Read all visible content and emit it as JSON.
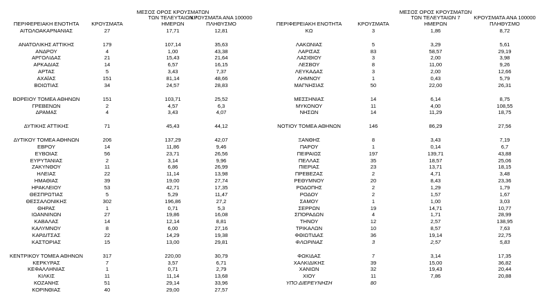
{
  "tables": [
    {
      "header": [
        "ΠΕΡΙΦΕΡΕΙΑΚΗ ΕΝΟΤΗΤΑ",
        "ΚΡΟΥΣΜΑΤΑ",
        [
          "ΜΕΣΟΣ ΟΡΟΣ ΚΡΟΥΣΜΑΤΩΝ",
          "ΤΩΝ ΤΕΛΕΥΤΑΙΩΝ 7",
          "ΗΜΕΡΩΝ"
        ],
        [
          "ΚΡΟΥΣΜΑΤΑ ΑΝΑ 100000",
          "ΠΛΗΘΥΣΜΟ"
        ]
      ],
      "groups": [
        [
          [
            "ΑΙΤΩΛΟΑΚΑΡΝΑΝΙΑΣ",
            "27",
            "17,71",
            "12,81"
          ]
        ],
        [
          [
            "ΑΝΑΤΟΛΙΚΗΣ ΑΤΤΙΚΗΣ",
            "179",
            "107,14",
            "35,63"
          ],
          [
            "ΑΝΔΡΟΥ",
            "4",
            "1,00",
            "43,38"
          ],
          [
            "ΑΡΓΟΛΙΔΑΣ",
            "21",
            "15,43",
            "21,64"
          ],
          [
            "ΑΡΚΑΔΙΑΣ",
            "14",
            "6,57",
            "16,15"
          ],
          [
            "ΑΡΤΑΣ",
            "5",
            "3,43",
            "7,37"
          ],
          [
            "ΑΧΑΪΑΣ",
            "151",
            "81,14",
            "48,66"
          ],
          [
            "ΒΟΙΩΤΙΑΣ",
            "34",
            "24,57",
            "28,83"
          ]
        ],
        [
          [
            "ΒΟΡΕΙΟΥ ΤΟΜΕΑ ΑΘΗΝΩΝ",
            "151",
            "103,71",
            "25,52"
          ],
          [
            "ΓΡΕΒΕΝΩΝ",
            "2",
            "4,57",
            "6,3"
          ],
          [
            "ΔΡΑΜΑΣ",
            "4",
            "3,43",
            "4,07"
          ]
        ],
        [
          [
            "ΔΥΤΙΚΗΣ ΑΤΤΙΚΗΣ",
            "71",
            "45,43",
            "44,12"
          ]
        ],
        [
          [
            "ΔΥΤΙΚΟΥ ΤΟΜΕΑ ΑΘΗΝΩΝ",
            "206",
            "137,29",
            "42,07"
          ],
          [
            "ΕΒΡΟΥ",
            "14",
            "11,86",
            "9,46"
          ],
          [
            "ΕΥΒΟΙΑΣ",
            "56",
            "23,71",
            "26,56"
          ],
          [
            "ΕΥΡΥΤΑΝΙΑΣ",
            "2",
            "3,14",
            "9,96"
          ],
          [
            "ΖΑΚΥΝΘΟΥ",
            "11",
            "6,86",
            "26,99"
          ],
          [
            "ΗΛΕΙΑΣ",
            "22",
            "11,14",
            "13,98"
          ],
          [
            "ΗΜΑΘΙΑΣ",
            "39",
            "19,00",
            "27,74"
          ],
          [
            "ΗΡΑΚΛΕΙΟΥ",
            "53",
            "42,71",
            "17,35"
          ],
          [
            "ΘΕΣΠΡΩΤΙΑΣ",
            "5",
            "5,29",
            "11,47"
          ],
          [
            "ΘΕΣΣΑΛΟΝΙΚΗΣ",
            "302",
            "196,86",
            "27,2"
          ],
          [
            "ΘΗΡΑΣ",
            "1",
            "0,71",
            "5,3"
          ],
          [
            "ΙΩΑΝΝΙΝΩΝ",
            "27",
            "19,86",
            "16,08"
          ],
          [
            "ΚΑΒΑΛΑΣ",
            "14",
            "12,14",
            "8,81"
          ],
          [
            "ΚΑΛΥΜΝΟΥ",
            "8",
            "6,00",
            "27,16"
          ],
          [
            "ΚΑΡΔΙΤΣΑΣ",
            "22",
            "14,29",
            "19,38"
          ],
          [
            "ΚΑΣΤΟΡΙΑΣ",
            "15",
            "13,00",
            "29,81"
          ]
        ],
        [
          [
            "ΚΕΝΤΡΙΚΟΥ ΤΟΜΕΑ ΑΘΗΝΩΝ",
            "317",
            "220,00",
            "30,79"
          ],
          [
            "ΚΕΡΚΥΡΑΣ",
            "7",
            "3,57",
            "6,71"
          ],
          [
            "ΚΕΦΑΛΛΗΝΙΑΣ",
            "1",
            "0,71",
            "2,79"
          ],
          [
            "ΚΙΛΚΙΣ",
            "11",
            "11,14",
            "13,68"
          ],
          [
            "ΚΟΖΑΝΗΣ",
            "51",
            "29,14",
            "33,96"
          ],
          [
            "ΚΟΡΙΝΘΙΑΣ",
            "40",
            "29,00",
            "27,57"
          ]
        ]
      ]
    },
    {
      "header": [
        "ΠΕΡΙΦΕΡΕΙΑΚΗ ΕΝΟΤΗΤΑ",
        "ΚΡΟΥΣΜΑΤΑ",
        [
          "ΜΕΣΟΣ ΟΡΟΣ ΚΡΟΥΣΜΑΤΩΝ",
          "ΤΩΝ ΤΕΛΕΥΤΑΙΩΝ 7",
          "ΗΜΕΡΩΝ"
        ],
        [
          "ΚΡΟΥΣΜΑΤΑ ΑΝΑ 100000",
          "ΠΛΗΘΥΣΜΟ"
        ]
      ],
      "groups": [
        [
          [
            "ΚΩ",
            "3",
            "1,86",
            "8,72"
          ]
        ],
        [
          [
            "ΛΑΚΩΝΙΑΣ",
            "5",
            "3,29",
            "5,61"
          ],
          [
            "ΛΑΡΙΣΑΣ",
            "83",
            "58,57",
            "29,19"
          ],
          [
            "ΛΑΣΙΘΙΟΥ",
            "3",
            "2,00",
            "3,98"
          ],
          [
            "ΛΕΣΒΟΥ",
            "8",
            "11,00",
            "9,26"
          ],
          [
            "ΛΕΥΚΑΔΑΣ",
            "3",
            "2,00",
            "12,66"
          ],
          [
            "ΛΗΜΝΟΥ",
            "1",
            "0,43",
            "5,79"
          ],
          [
            "ΜΑΓΝΗΣΙΑΣ",
            "50",
            "22,00",
            "26,31"
          ]
        ],
        [
          [
            "ΜΕΣΣΗΝΙΑΣ",
            "14",
            "6,14",
            "8,75"
          ],
          [
            "ΜΥΚΟΝΟΥ",
            "11",
            "4,00",
            "108,55"
          ],
          [
            "ΝΗΣΩΝ",
            "14",
            "11,29",
            "18,75"
          ]
        ],
        [
          [
            "ΝΟΤΙΟΥ ΤΟΜΕΑ ΑΘΗΝΩΝ",
            "146",
            "86,29",
            "27,56"
          ]
        ],
        [
          [
            "ΞΑΝΘΗΣ",
            "8",
            "3,43",
            "7,19"
          ],
          [
            "ΠΑΡΟΥ",
            "1",
            "0,14",
            "6,7"
          ],
          [
            "ΠΕΙΡΑΙΩΣ",
            "197",
            "139,71",
            "43,88"
          ],
          [
            "ΠΕΛΛΑΣ",
            "35",
            "18,57",
            "25,06"
          ],
          [
            "ΠΙΕΡΙΑΣ",
            "23",
            "13,71",
            "18,15"
          ],
          [
            "ΠΡΕΒΕΖΑΣ",
            "2",
            "4,71",
            "3,48"
          ],
          [
            "ΡΕΘΥΜΝΟΥ",
            "20",
            "8,43",
            "23,36"
          ],
          [
            "ΡΟΔΟΠΗΣ",
            "2",
            "1,29",
            "1,79"
          ],
          [
            "ΡΟΔΟΥ",
            "2",
            "1,57",
            "1,67"
          ],
          [
            "ΣΑΜΟΥ",
            "1",
            "1,00",
            "3,03"
          ],
          [
            "ΣΕΡΡΩΝ",
            "19",
            "14,71",
            "10,77"
          ],
          [
            "ΣΠΟΡΑΔΩΝ",
            "4",
            "1,71",
            "28,99"
          ],
          [
            "ΤΗΝΟΥ",
            "12",
            "2,57",
            "138,95"
          ],
          [
            "ΤΡΙΚΑΛΩΝ",
            "10",
            "8,57",
            "7,63"
          ],
          [
            "ΦΘΙΩΤΙΔΑΣ",
            "36",
            "19,14",
            "22,75"
          ],
          [
            "ΦΛΩΡΙΝΑΣ",
            "3",
            "2,57",
            "5,83"
          ]
        ],
        [
          [
            "ΦΩΚΙΔΑΣ",
            "7",
            "3,14",
            "17,35"
          ],
          [
            "ΧΑΛΚΙΔΙΚΗΣ",
            "39",
            "15,00",
            "36,82"
          ],
          [
            "ΧΑΝΙΩΝ",
            "32",
            "19,43",
            "20,44"
          ],
          [
            "ΧΙΟΥ",
            "11",
            "7,86",
            "20,88"
          ],
          [
            "ΥΠΟ ΔΙΕΡΕΥΝΗΣΗ",
            "80"
          ]
        ]
      ]
    }
  ]
}
